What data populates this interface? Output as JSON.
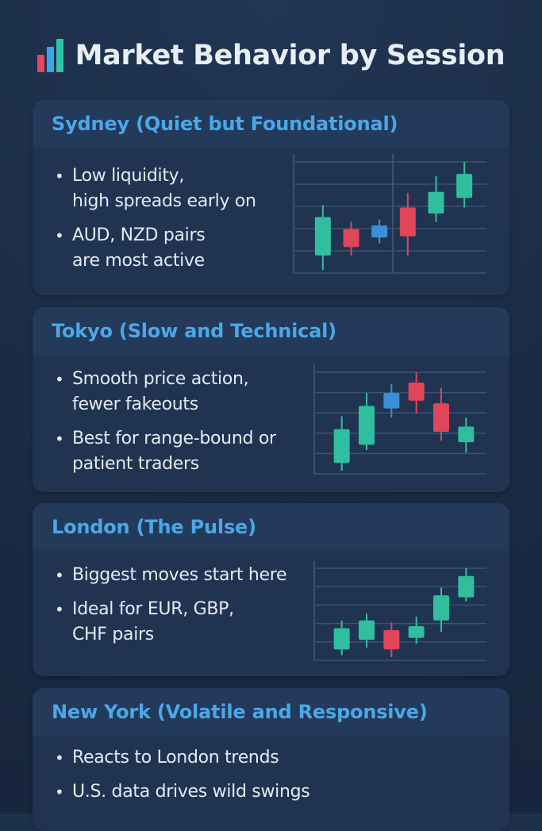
{
  "header": {
    "title": "Market Behavior by Session",
    "icon": "bar-chart-icon",
    "icon_colors": [
      "#e04a5a",
      "#3aa8e0",
      "#2fc4a8"
    ]
  },
  "colors": {
    "bull": "#2fbf9f",
    "bear": "#e0455a",
    "neutral": "#3a8fd6",
    "accent": "#4aa8e8"
  },
  "sessions": [
    {
      "name": "Sydney",
      "subtitle": "(Quiet but Foundational)",
      "title": "Sydney  (Quiet but Foundational)",
      "bullets": [
        "Low liquidity,\nhigh spreads early on",
        "AUD, NZD pairs\nare most active"
      ],
      "candles": [
        {
          "o": 30,
          "c": 62,
          "h": 72,
          "l": 18,
          "color": "bull"
        },
        {
          "o": 52,
          "c": 37,
          "h": 58,
          "l": 30,
          "color": "bear"
        },
        {
          "o": 45,
          "c": 55,
          "h": 60,
          "l": 40,
          "color": "neutral"
        },
        {
          "o": 70,
          "c": 46,
          "h": 82,
          "l": 30,
          "color": "bear"
        },
        {
          "o": 65,
          "c": 83,
          "h": 96,
          "l": 58,
          "color": "bull"
        },
        {
          "o": 78,
          "c": 98,
          "h": 108,
          "l": 70,
          "color": "bull"
        }
      ]
    },
    {
      "name": "Tokyo",
      "subtitle": "(Slow and Technical)",
      "title": "Tokyo  (Slow and Technical)",
      "bullets": [
        "Smooth price action,\nfewer fakeouts",
        "Best for range-bound or\npatient traders"
      ],
      "candles": [
        {
          "o": 30,
          "c": 56,
          "h": 66,
          "l": 24,
          "color": "bull"
        },
        {
          "o": 44,
          "c": 74,
          "h": 84,
          "l": 40,
          "color": "bull"
        },
        {
          "o": 72,
          "c": 84,
          "h": 91,
          "l": 65,
          "color": "neutral"
        },
        {
          "o": 92,
          "c": 78,
          "h": 100,
          "l": 68,
          "color": "bear"
        },
        {
          "o": 76,
          "c": 54,
          "h": 88,
          "l": 47,
          "color": "bear"
        },
        {
          "o": 46,
          "c": 58,
          "h": 65,
          "l": 38,
          "color": "bull"
        }
      ]
    },
    {
      "name": "London",
      "subtitle": "(The Pulse)",
      "title": "London  (The Pulse)",
      "bullets": [
        "Biggest moves start here",
        "Ideal for EUR, GBP,\nCHF pairs"
      ],
      "candles": [
        {
          "o": 28,
          "c": 50,
          "h": 58,
          "l": 22,
          "color": "bull"
        },
        {
          "o": 38,
          "c": 58,
          "h": 65,
          "l": 30,
          "color": "bull"
        },
        {
          "o": 48,
          "c": 28,
          "h": 56,
          "l": 20,
          "color": "bear"
        },
        {
          "o": 40,
          "c": 52,
          "h": 62,
          "l": 34,
          "color": "bull"
        },
        {
          "o": 58,
          "c": 84,
          "h": 92,
          "l": 46,
          "color": "bull"
        },
        {
          "o": 82,
          "c": 104,
          "h": 112,
          "l": 78,
          "color": "bull"
        }
      ]
    },
    {
      "name": "New York",
      "subtitle": "(Volatile and Responsive)",
      "title": "New York (Volatile and Responsive)",
      "bullets": [
        "Reacts to London trends",
        "U.S. data drives wild swings"
      ],
      "candles": []
    }
  ]
}
